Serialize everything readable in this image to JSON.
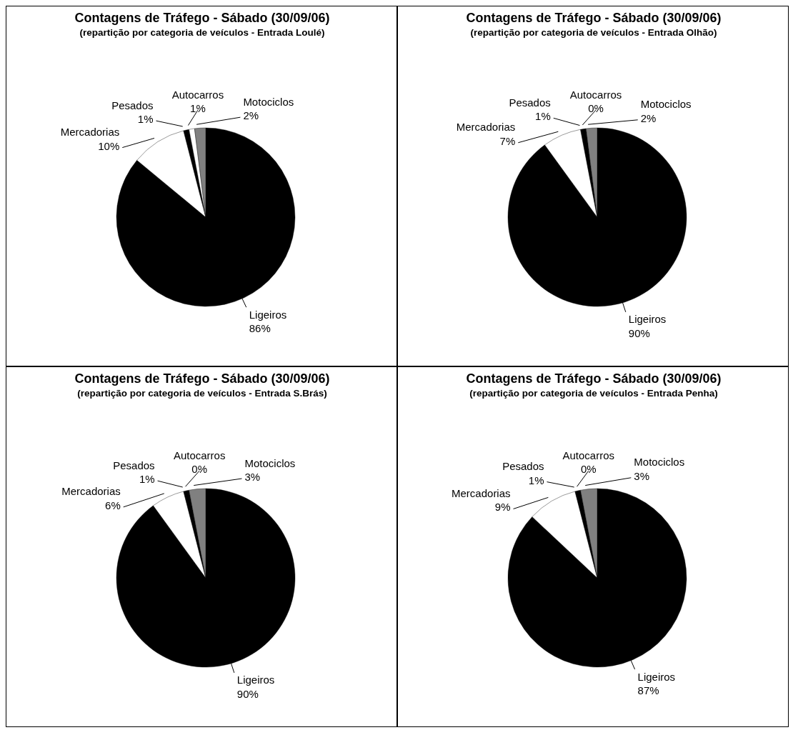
{
  "chart_data": [
    {
      "type": "pie",
      "title": "Contagens de Tráfego - Sábado (30/09/06)",
      "subtitle": "(repartição por categoria de veículos - Entrada Loulé)",
      "categories": [
        "Ligeiros",
        "Mercadorias",
        "Pesados",
        "Autocarros",
        "Motociclos"
      ],
      "values": [
        86,
        10,
        1,
        1,
        2
      ],
      "value_labels": [
        "86%",
        "10%",
        "1%",
        "1%",
        "2%"
      ],
      "colors": [
        "#000000",
        "#ffffff",
        "#000000",
        "#ffffff",
        "#808080"
      ],
      "legend": false
    },
    {
      "type": "pie",
      "title": "Contagens de Tráfego - Sábado (30/09/06)",
      "subtitle": "(repartição por categoria de veículos - Entrada Olhão)",
      "categories": [
        "Ligeiros",
        "Mercadorias",
        "Pesados",
        "Autocarros",
        "Motociclos"
      ],
      "values": [
        90,
        7,
        1,
        0,
        2
      ],
      "value_labels": [
        "90%",
        "7%",
        "1%",
        "0%",
        "2%"
      ],
      "colors": [
        "#000000",
        "#ffffff",
        "#000000",
        "#ffffff",
        "#808080"
      ],
      "legend": false
    },
    {
      "type": "pie",
      "title": "Contagens de Tráfego - Sábado (30/09/06)",
      "subtitle": "(repartição por categoria de veículos - Entrada S.Brás)",
      "categories": [
        "Ligeiros",
        "Mercadorias",
        "Pesados",
        "Autocarros",
        "Motociclos"
      ],
      "values": [
        90,
        6,
        1,
        0,
        3
      ],
      "value_labels": [
        "90%",
        "6%",
        "1%",
        "0%",
        "3%"
      ],
      "colors": [
        "#000000",
        "#ffffff",
        "#000000",
        "#ffffff",
        "#808080"
      ],
      "legend": false
    },
    {
      "type": "pie",
      "title": "Contagens de Tráfego - Sábado (30/09/06)",
      "subtitle": "(repartição por categoria de veículos - Entrada Penha)",
      "categories": [
        "Ligeiros",
        "Mercadorias",
        "Pesados",
        "Autocarros",
        "Motociclos"
      ],
      "values": [
        87,
        9,
        1,
        0,
        3
      ],
      "value_labels": [
        "87%",
        "9%",
        "1%",
        "0%",
        "3%"
      ],
      "colors": [
        "#000000",
        "#ffffff",
        "#000000",
        "#ffffff",
        "#808080"
      ],
      "legend": false
    }
  ]
}
